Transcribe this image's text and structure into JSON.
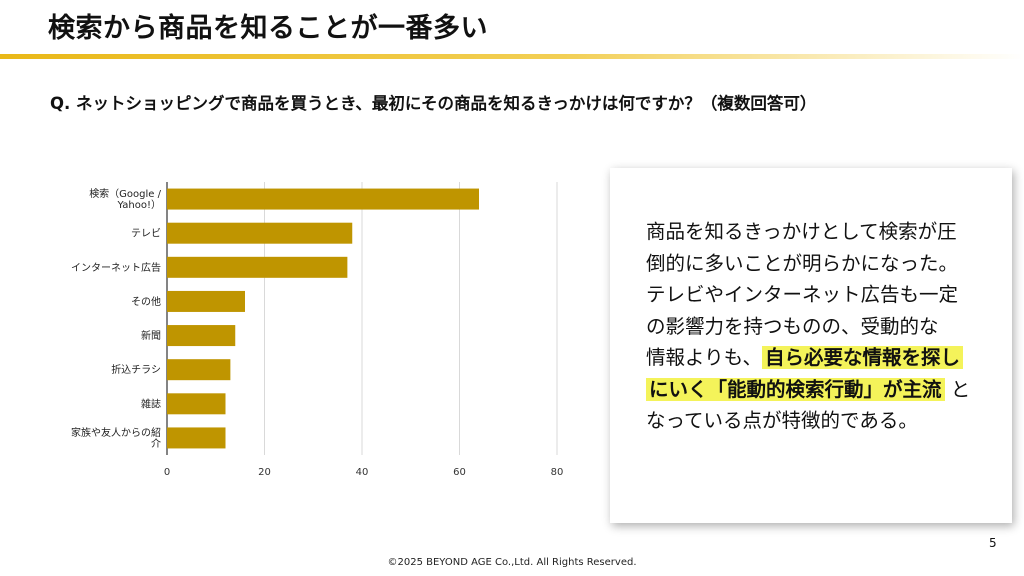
{
  "slide": {
    "title": "検索から商品を知ることが一番多い",
    "question": "Q. ネットショッピングで商品を買うとき、最初にその商品を知るきっかけは何ですか？（複数回答可）",
    "page_number": "5",
    "copyright": "©2025 BEYOND AGE Co.,Ltd. All Rights Reserved."
  },
  "summary": {
    "line1": "商品を知るきっかけとして検索が圧",
    "line2": "倒的に多いことが明らかになった。",
    "line3": "テレビやインターネット広告も一定",
    "line4": "の影響力を持つものの、受動的な",
    "line5_prefix": "情報よりも、",
    "highlight1": "自ら必要な情報を探し",
    "highlight2": "にいく「能動的検索行動」が主流",
    "line6_suffix": " と",
    "line7": "なっている点が特徴的である。",
    "highlight_color": "#f4f35a"
  },
  "chart_data": {
    "type": "bar",
    "orientation": "horizontal",
    "categories": [
      [
        "検索（Google /",
        "Yahoo!）"
      ],
      [
        "テレビ"
      ],
      [
        "インターネット広告"
      ],
      [
        "その他"
      ],
      [
        "新聞"
      ],
      [
        "折込チラシ"
      ],
      [
        "雑誌"
      ],
      [
        "家族や友人からの紹",
        "介"
      ]
    ],
    "values": [
      64,
      38,
      37,
      16,
      14,
      13,
      12,
      12
    ],
    "xlim": [
      0,
      80
    ],
    "xticks": [
      "0",
      "20",
      "40",
      "60",
      "80"
    ],
    "grid": true,
    "bar_color": "#bf9500"
  }
}
